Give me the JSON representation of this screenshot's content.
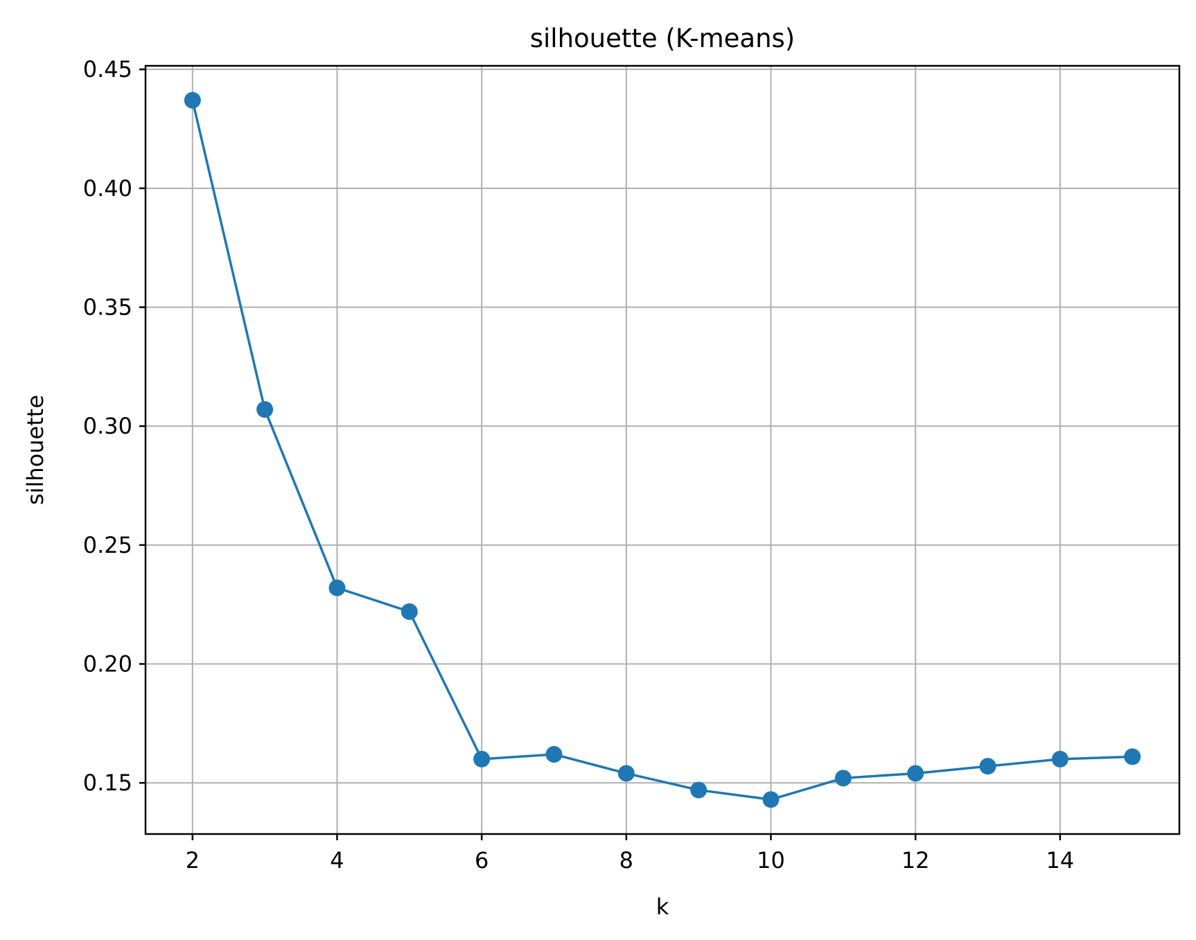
{
  "chart_data": {
    "type": "line",
    "title": "silhouette (K-means)",
    "xlabel": "k",
    "ylabel": "silhouette",
    "xlim": [
      1.35,
      15.65
    ],
    "ylim": [
      0.1285,
      0.4515
    ],
    "x_ticks": [
      {
        "value": 2,
        "label": "2"
      },
      {
        "value": 4,
        "label": "4"
      },
      {
        "value": 6,
        "label": "6"
      },
      {
        "value": 8,
        "label": "8"
      },
      {
        "value": 10,
        "label": "10"
      },
      {
        "value": 12,
        "label": "12"
      },
      {
        "value": 14,
        "label": "14"
      }
    ],
    "y_ticks": [
      {
        "value": 0.15,
        "label": "0.15"
      },
      {
        "value": 0.2,
        "label": "0.20"
      },
      {
        "value": 0.25,
        "label": "0.25"
      },
      {
        "value": 0.3,
        "label": "0.30"
      },
      {
        "value": 0.35,
        "label": "0.35"
      },
      {
        "value": 0.4,
        "label": "0.40"
      },
      {
        "value": 0.45,
        "label": "0.45"
      }
    ],
    "grid": true,
    "series": [
      {
        "color": "#1f77b4",
        "marker": "circle",
        "x": [
          2,
          3,
          4,
          5,
          6,
          7,
          8,
          9,
          10,
          11,
          12,
          13,
          14,
          15
        ],
        "y": [
          0.437,
          0.307,
          0.232,
          0.222,
          0.16,
          0.162,
          0.154,
          0.147,
          0.143,
          0.152,
          0.154,
          0.157,
          0.16,
          0.161
        ]
      }
    ]
  }
}
